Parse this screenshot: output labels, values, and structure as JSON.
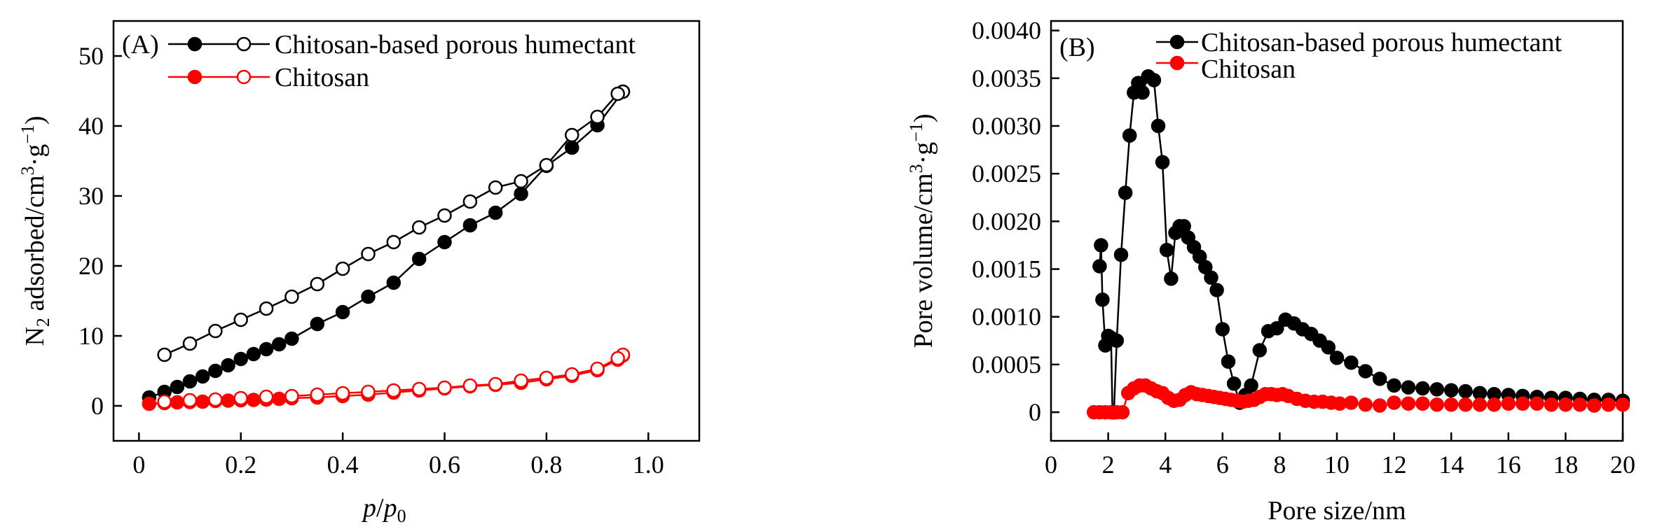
{
  "colors": {
    "black_series": "#000000",
    "red_series": "#ff0000"
  },
  "chart_data": [
    {
      "type": "line",
      "panel_label": "(A)",
      "xlabel_parts": [
        "p",
        "/",
        "p",
        "0"
      ],
      "ylabel_parts": [
        "N",
        "2",
        " adsorbed/cm",
        "3",
        "·g",
        "−1",
        ")"
      ],
      "xlim": [
        -0.05,
        1.1
      ],
      "ylim": [
        -5,
        55
      ],
      "x_ticks": [
        0,
        0.2,
        0.4,
        0.6,
        0.8,
        1.0
      ],
      "x_tick_labels": [
        "0",
        "0.2",
        "0.4",
        "0.6",
        "0.8",
        "1.0"
      ],
      "y_ticks": [
        0,
        10,
        20,
        30,
        40,
        50
      ],
      "y_tick_labels": [
        "0",
        "10",
        "20",
        "30",
        "40",
        "50"
      ],
      "legend_position": "top-left",
      "legend": [
        "Chitosan-based porous humectant",
        "Chitosan"
      ],
      "series": [
        {
          "name": "Chitosan-based porous humectant",
          "kind": "adsorption",
          "marker": "filled",
          "color": "#000000",
          "x": [
            0.02,
            0.05,
            0.075,
            0.1,
            0.125,
            0.15,
            0.175,
            0.2,
            0.225,
            0.25,
            0.275,
            0.3,
            0.35,
            0.4,
            0.45,
            0.5,
            0.55,
            0.6,
            0.65,
            0.7,
            0.75,
            0.8,
            0.85,
            0.9,
            0.95
          ],
          "y": [
            1.2,
            2.0,
            2.7,
            3.5,
            4.2,
            5.0,
            5.8,
            6.7,
            7.4,
            8.1,
            8.8,
            9.6,
            11.7,
            13.4,
            15.6,
            17.6,
            21.0,
            23.4,
            25.8,
            27.6,
            30.3,
            34.3,
            36.9,
            40.1,
            44.9
          ]
        },
        {
          "name": "Chitosan-based porous humectant",
          "kind": "desorption",
          "marker": "open",
          "color": "#000000",
          "x": [
            0.95,
            0.94,
            0.9,
            0.85,
            0.8,
            0.75,
            0.7,
            0.65,
            0.6,
            0.55,
            0.5,
            0.45,
            0.4,
            0.35,
            0.3,
            0.25,
            0.2,
            0.15,
            0.1,
            0.05
          ],
          "y": [
            44.9,
            44.6,
            41.3,
            38.7,
            34.4,
            32.1,
            31.2,
            29.2,
            27.2,
            25.5,
            23.4,
            21.7,
            19.6,
            17.4,
            15.6,
            13.9,
            12.3,
            10.7,
            8.9,
            7.3
          ]
        },
        {
          "name": "Chitosan",
          "kind": "adsorption",
          "marker": "filled",
          "color": "#ff0000",
          "x": [
            0.02,
            0.05,
            0.075,
            0.1,
            0.125,
            0.15,
            0.175,
            0.2,
            0.225,
            0.25,
            0.275,
            0.3,
            0.35,
            0.4,
            0.45,
            0.5,
            0.55,
            0.6,
            0.65,
            0.7,
            0.75,
            0.8,
            0.85,
            0.9,
            0.94,
            0.95
          ],
          "y": [
            0.3,
            0.4,
            0.5,
            0.55,
            0.6,
            0.7,
            0.75,
            0.8,
            0.85,
            0.9,
            1.0,
            1.1,
            1.2,
            1.4,
            1.6,
            1.9,
            2.2,
            2.5,
            2.8,
            3.0,
            3.3,
            3.8,
            4.3,
            5.1,
            6.6,
            7.2
          ]
        },
        {
          "name": "Chitosan",
          "kind": "desorption",
          "marker": "open",
          "color": "#ff0000",
          "x": [
            0.95,
            0.94,
            0.9,
            0.85,
            0.8,
            0.75,
            0.7,
            0.65,
            0.6,
            0.55,
            0.5,
            0.45,
            0.4,
            0.35,
            0.3,
            0.25,
            0.2,
            0.15,
            0.1,
            0.05
          ],
          "y": [
            7.3,
            6.8,
            5.3,
            4.5,
            4.0,
            3.6,
            3.1,
            2.9,
            2.6,
            2.4,
            2.2,
            2.0,
            1.8,
            1.6,
            1.4,
            1.3,
            1.1,
            0.9,
            0.8,
            0.6
          ]
        }
      ]
    },
    {
      "type": "line",
      "panel_label": "(B)",
      "xlabel": "Pore size/nm",
      "ylabel_parts": [
        "Pore volume/cm",
        "3",
        "·g",
        "−1",
        ")"
      ],
      "xlim": [
        0,
        20
      ],
      "ylim": [
        -0.0003,
        0.0041
      ],
      "x_ticks": [
        0,
        2,
        4,
        6,
        8,
        10,
        12,
        14,
        16,
        18,
        20
      ],
      "x_tick_labels": [
        "0",
        "2",
        "4",
        "6",
        "8",
        "10",
        "12",
        "14",
        "16",
        "18",
        "20"
      ],
      "y_ticks": [
        0,
        0.0005,
        0.001,
        0.0015,
        0.002,
        0.0025,
        0.003,
        0.0035,
        0.004
      ],
      "y_tick_labels": [
        "0",
        "0.0005",
        "0.0010",
        "0.0015",
        "0.0020",
        "0.0025",
        "0.0030",
        "0.0035",
        "0.0040"
      ],
      "legend_position": "top-right",
      "legend": [
        "Chitosan-based porous humectant",
        "Chitosan"
      ],
      "series": [
        {
          "name": "Chitosan-based porous humectant",
          "color": "#000000",
          "x": [
            1.7,
            1.75,
            1.8,
            1.9,
            2.0,
            2.1,
            2.15,
            2.2,
            2.3,
            2.45,
            2.6,
            2.75,
            2.9,
            3.05,
            3.2,
            3.4,
            3.6,
            3.75,
            3.9,
            4.05,
            4.2,
            4.35,
            4.5,
            4.65,
            4.8,
            5.0,
            5.2,
            5.4,
            5.6,
            5.8,
            6.0,
            6.2,
            6.4,
            6.6,
            6.8,
            7.0,
            7.3,
            7.6,
            7.9,
            8.2,
            8.5,
            8.8,
            9.1,
            9.4,
            9.7,
            10.0,
            10.5,
            11.0,
            11.5,
            12.0,
            12.5,
            13.0,
            13.5,
            14.0,
            14.5,
            15.0,
            15.5,
            16.0,
            16.5,
            17.0,
            17.5,
            18.0,
            18.5,
            19.0,
            19.5,
            20.0
          ],
          "y": [
            0.00153,
            0.00175,
            0.00118,
            0.0007,
            0.0008,
            0.00078,
            0.0,
            0.0,
            0.00075,
            0.00165,
            0.0023,
            0.0029,
            0.00335,
            0.00345,
            0.00335,
            0.00352,
            0.00348,
            0.003,
            0.00262,
            0.0017,
            0.0014,
            0.00188,
            0.00195,
            0.00195,
            0.00183,
            0.00173,
            0.00163,
            0.00152,
            0.00141,
            0.00128,
            0.00087,
            0.00053,
            0.0003,
            0.0001,
            0.00018,
            0.00028,
            0.00065,
            0.00085,
            0.00088,
            0.00097,
            0.00093,
            0.00087,
            0.00082,
            0.00075,
            0.00068,
            0.00057,
            0.00052,
            0.00043,
            0.00035,
            0.00028,
            0.00026,
            0.00025,
            0.00024,
            0.00023,
            0.00022,
            0.0002,
            0.00019,
            0.00018,
            0.00017,
            0.00016,
            0.00015,
            0.00015,
            0.00014,
            0.00013,
            0.00013,
            0.00012
          ]
        },
        {
          "name": "Chitosan",
          "color": "#ff0000",
          "x": [
            1.5,
            1.7,
            1.9,
            2.1,
            2.3,
            2.5,
            2.7,
            2.9,
            3.1,
            3.3,
            3.5,
            3.7,
            3.9,
            4.1,
            4.3,
            4.5,
            4.7,
            4.9,
            5.1,
            5.3,
            5.5,
            5.7,
            5.9,
            6.1,
            6.3,
            6.5,
            6.7,
            6.9,
            7.1,
            7.3,
            7.5,
            7.7,
            7.9,
            8.1,
            8.3,
            8.6,
            8.9,
            9.2,
            9.5,
            9.8,
            10.1,
            10.5,
            11.0,
            11.5,
            12.0,
            12.5,
            13.0,
            13.5,
            14.0,
            14.5,
            15.0,
            15.5,
            16.0,
            16.5,
            17.0,
            17.5,
            18.0,
            18.5,
            19.0,
            19.5,
            20.0
          ],
          "y": [
            0.0,
            0.0,
            0.0,
            0.0,
            0.0,
            0.0,
            0.0002,
            0.00025,
            0.00028,
            0.00028,
            0.00025,
            0.00022,
            0.0002,
            0.00015,
            0.00012,
            0.00013,
            0.00018,
            0.00021,
            0.00019,
            0.00018,
            0.00017,
            0.00016,
            0.00015,
            0.00014,
            0.00013,
            0.00012,
            0.00011,
            0.00012,
            0.00013,
            0.00016,
            0.00019,
            0.00019,
            0.00018,
            0.00019,
            0.00017,
            0.00014,
            0.00012,
            0.00011,
            0.00011,
            0.0001,
            9e-05,
            0.0001,
            8e-05,
            7e-05,
            0.0001,
            9e-05,
            9e-05,
            8e-05,
            8e-05,
            8e-05,
            8e-05,
            8e-05,
            9e-05,
            9e-05,
            9e-05,
            8e-05,
            8e-05,
            8e-05,
            7e-05,
            8e-05,
            8e-05
          ]
        }
      ]
    }
  ]
}
